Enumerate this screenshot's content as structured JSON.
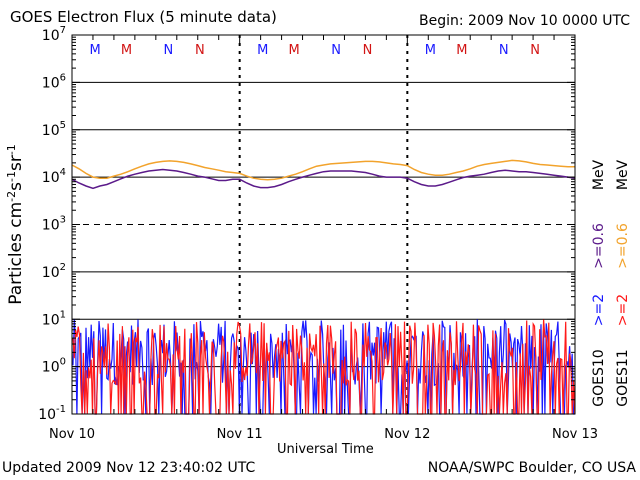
{
  "header": {
    "title": "GOES Electron Flux (5 minute data)",
    "begin": "Begin: 2009 Nov 10 0000 UTC"
  },
  "footer": {
    "updated": "Updated 2009 Nov 12 23:40:02 UTC",
    "credit": "NOAA/SWPC Boulder, CO USA"
  },
  "chart_data": {
    "type": "line",
    "title": "GOES Electron Flux (5 minute data)",
    "xlabel": "Universal Time",
    "ylabel": "Particles cm-2s-1sr-1",
    "yscale": "log",
    "ylim": [
      0.1,
      10000000
    ],
    "xlim": [
      0,
      72
    ],
    "x_units": "hours since 2009 Nov 10 0000 UTC",
    "x_ticks": [
      {
        "x": 0,
        "label": "Nov 10"
      },
      {
        "x": 24,
        "label": "Nov 11"
      },
      {
        "x": 48,
        "label": "Nov 12"
      },
      {
        "x": 72,
        "label": "Nov 13"
      }
    ],
    "y_ticks": [
      {
        "base": "10",
        "exp": "-1",
        "value": 0.1
      },
      {
        "base": "10",
        "exp": "0",
        "value": 1
      },
      {
        "base": "10",
        "exp": "1",
        "value": 10
      },
      {
        "base": "10",
        "exp": "2",
        "value": 100
      },
      {
        "base": "10",
        "exp": "3",
        "value": 1000
      },
      {
        "base": "10",
        "exp": "4",
        "value": 10000
      },
      {
        "base": "10",
        "exp": "5",
        "value": 100000
      },
      {
        "base": "10",
        "exp": "6",
        "value": 1000000
      },
      {
        "base": "10",
        "exp": "7",
        "value": 10000000
      }
    ],
    "grid": true,
    "dashed_grid_levels": [
      1000
    ],
    "series": [
      {
        "name": ">=0.6 MeV",
        "satellite": "GOES10",
        "color": "#5b1a8a",
        "x": [
          0,
          1,
          2,
          3,
          4,
          5,
          6,
          7,
          8,
          9,
          10,
          11,
          12,
          13,
          14,
          15,
          16,
          17,
          18,
          19,
          20,
          21,
          22,
          23,
          24,
          25,
          26,
          27,
          28,
          29,
          30,
          31,
          32,
          33,
          34,
          35,
          36,
          37,
          38,
          39,
          40,
          41,
          42,
          43,
          44,
          45,
          46,
          47,
          48,
          49,
          50,
          51,
          52,
          53,
          54,
          55,
          56,
          57,
          58,
          59,
          60,
          61,
          62,
          63,
          64,
          65,
          66,
          67,
          68,
          69,
          70,
          71,
          72
        ],
        "values": [
          9000,
          7500,
          6500,
          5800,
          6500,
          7000,
          8000,
          9200,
          10500,
          11500,
          12500,
          13500,
          14000,
          14500,
          14000,
          13500,
          12500,
          11500,
          10500,
          10000,
          9200,
          8500,
          8500,
          9000,
          9000,
          7500,
          6500,
          6000,
          6000,
          6300,
          7000,
          8000,
          9000,
          10000,
          11000,
          12000,
          13000,
          13500,
          13500,
          13500,
          13500,
          13000,
          12500,
          11500,
          10500,
          10000,
          10000,
          10000,
          9500,
          8000,
          7000,
          6500,
          6500,
          7000,
          7800,
          8800,
          9800,
          10500,
          11000,
          11500,
          12500,
          13500,
          14000,
          13500,
          13000,
          13000,
          12500,
          12000,
          11500,
          11000,
          10500,
          10000,
          9500
        ]
      },
      {
        "name": ">=0.6 MeV",
        "satellite": "GOES11",
        "color": "#f2a32c",
        "x": [
          0,
          1,
          2,
          3,
          4,
          5,
          6,
          7,
          8,
          9,
          10,
          11,
          12,
          13,
          14,
          15,
          16,
          17,
          18,
          19,
          20,
          21,
          22,
          23,
          24,
          25,
          26,
          27,
          28,
          29,
          30,
          31,
          32,
          33,
          34,
          35,
          36,
          37,
          38,
          39,
          40,
          41,
          42,
          43,
          44,
          45,
          46,
          47,
          48,
          49,
          50,
          51,
          52,
          53,
          54,
          55,
          56,
          57,
          58,
          59,
          60,
          61,
          62,
          63,
          64,
          65,
          66,
          67,
          68,
          69,
          70,
          71,
          72
        ],
        "values": [
          18000,
          15000,
          12000,
          10000,
          9500,
          9500,
          10500,
          11500,
          13000,
          15000,
          17000,
          19000,
          20500,
          21500,
          22000,
          21500,
          20500,
          19000,
          17500,
          16000,
          15000,
          14000,
          13000,
          12500,
          12000,
          10500,
          9500,
          9000,
          8800,
          9000,
          9500,
          10500,
          11500,
          13000,
          15000,
          17000,
          18000,
          19000,
          19500,
          20000,
          20500,
          21000,
          21500,
          21500,
          21000,
          20000,
          19000,
          18500,
          17500,
          14500,
          12500,
          11500,
          11000,
          11000,
          11500,
          12500,
          13500,
          15000,
          17000,
          18500,
          19500,
          20500,
          21500,
          22500,
          22000,
          21000,
          19500,
          18500,
          18000,
          17500,
          17000,
          16500,
          16500
        ]
      },
      {
        "name": ">=2 MeV",
        "satellite": "GOES10",
        "color": "#1a1aff",
        "noisy": true,
        "ymin": 0.1,
        "ymax": 10
      },
      {
        "name": ">=2 MeV",
        "satellite": "GOES11",
        "color": "#ff1a1a",
        "noisy": true,
        "ymin": 0.1,
        "ymax": 10
      }
    ],
    "event_markers": [
      {
        "day": 0,
        "marks": [
          {
            "label": "M",
            "color": "#1a1aff"
          },
          {
            "label": "M",
            "color": "#d21414"
          },
          {
            "label": "N",
            "color": "#1a1aff"
          },
          {
            "label": "N",
            "color": "#d21414"
          }
        ]
      },
      {
        "day": 1,
        "marks": [
          {
            "label": "M",
            "color": "#1a1aff"
          },
          {
            "label": "M",
            "color": "#d21414"
          },
          {
            "label": "N",
            "color": "#1a1aff"
          },
          {
            "label": "N",
            "color": "#d21414"
          }
        ]
      },
      {
        "day": 2,
        "marks": [
          {
            "label": "M",
            "color": "#1a1aff"
          },
          {
            "label": "M",
            "color": "#d21414"
          },
          {
            "label": "N",
            "color": "#1a1aff"
          },
          {
            "label": "N",
            "color": "#d21414"
          }
        ]
      }
    ],
    "right_legend": [
      {
        "text": ">=2",
        "color": "#1a1aff"
      },
      {
        "text": ">=2",
        "color": "#ff1a1a"
      },
      {
        "text": ">=0.6",
        "color": "#5b1a8a"
      },
      {
        "text": ">=0.6",
        "color": "#f2a32c"
      },
      {
        "text": "MeV",
        "color": "#000000"
      },
      {
        "text": "MeV",
        "color": "#000000"
      },
      {
        "text": "GOES10",
        "color": "#000000"
      },
      {
        "text": "GOES11",
        "color": "#000000"
      }
    ]
  }
}
